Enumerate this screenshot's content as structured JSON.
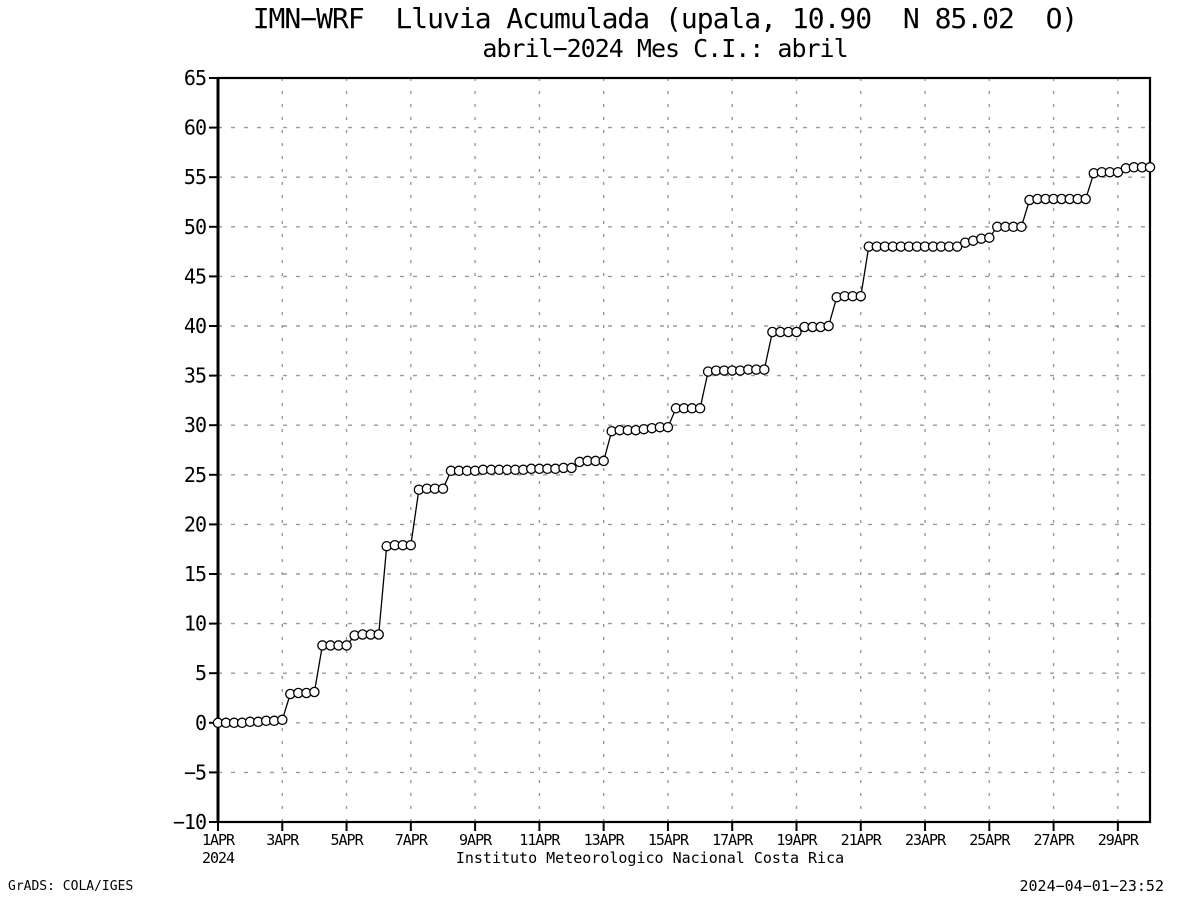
{
  "footer": {
    "credit": "GrADS: COLA/IGES",
    "timestamp": "2024−04−01−23:52"
  },
  "chart_data": {
    "type": "line",
    "title": "IMN−WRF  Lluvia Acumulada (upala, 10.90  N 85.02  O)",
    "subtitle": "abril−2024 Mes C.I.: abril",
    "xlabel": "Instituto Meteorologico Nacional Costa Rica",
    "ylabel": "",
    "ylim": [
      -10,
      65
    ],
    "ytick_step": 5,
    "x_tick_labels": [
      "1APR",
      "3APR",
      "5APR",
      "7APR",
      "9APR",
      "11APR",
      "13APR",
      "15APR",
      "17APR",
      "19APR",
      "21APR",
      "23APR",
      "25APR",
      "27APR",
      "29APR"
    ],
    "x_year_sublabel": "2024",
    "x_start_day": 1,
    "x_end_day": 30,
    "points_per_day": 4,
    "time_step_hours": 6,
    "grid": "dashed",
    "legend": "none",
    "marker": "open-circle",
    "line_color": "#000000",
    "grid_color": "#9a9a9a",
    "series": [
      {
        "name": "Lluvia acumulada (mm)",
        "values": [
          0.0,
          0.0,
          0.0,
          0.0,
          0.1,
          0.1,
          0.2,
          0.2,
          0.3,
          2.9,
          3.0,
          3.0,
          3.1,
          7.8,
          7.8,
          7.8,
          7.8,
          8.8,
          8.9,
          8.9,
          8.9,
          17.8,
          17.9,
          17.9,
          17.9,
          23.5,
          23.6,
          23.6,
          23.6,
          25.4,
          25.4,
          25.4,
          25.4,
          25.5,
          25.5,
          25.5,
          25.5,
          25.5,
          25.5,
          25.6,
          25.6,
          25.6,
          25.6,
          25.7,
          25.7,
          26.3,
          26.4,
          26.4,
          26.4,
          29.4,
          29.5,
          29.5,
          29.5,
          29.6,
          29.7,
          29.8,
          29.8,
          31.7,
          31.7,
          31.7,
          31.7,
          35.4,
          35.5,
          35.5,
          35.5,
          35.5,
          35.6,
          35.6,
          35.6,
          39.4,
          39.4,
          39.4,
          39.4,
          39.9,
          39.9,
          39.9,
          40.0,
          42.9,
          43.0,
          43.0,
          43.0,
          48.0,
          48.0,
          48.0,
          48.0,
          48.0,
          48.0,
          48.0,
          48.0,
          48.0,
          48.0,
          48.0,
          48.0,
          48.4,
          48.6,
          48.8,
          48.9,
          50.0,
          50.0,
          50.0,
          50.0,
          52.7,
          52.8,
          52.8,
          52.8,
          52.8,
          52.8,
          52.8,
          52.8,
          55.4,
          55.5,
          55.5,
          55.5,
          55.9,
          56.0,
          56.0,
          56.0
        ]
      }
    ]
  }
}
